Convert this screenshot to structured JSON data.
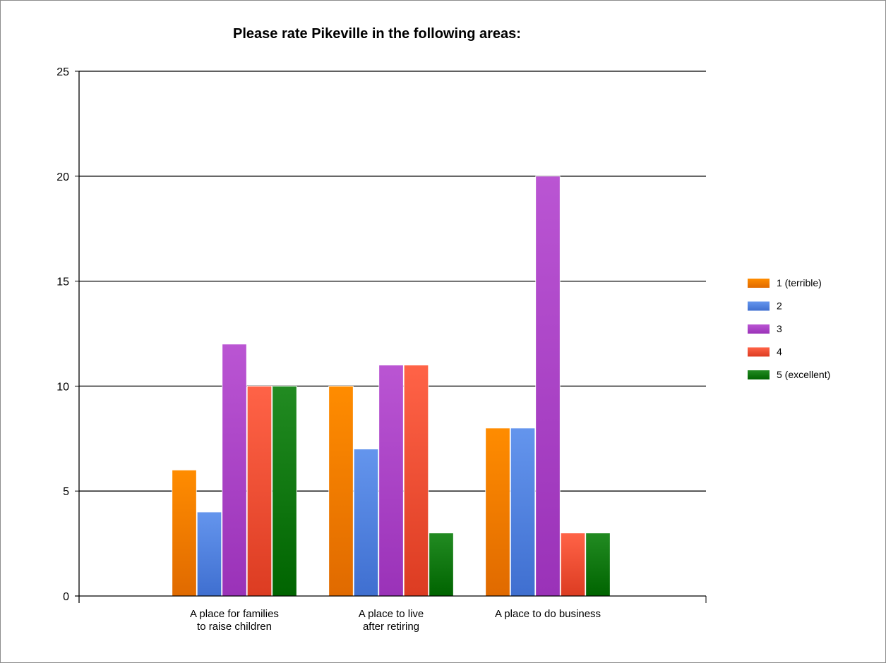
{
  "chart_data": {
    "type": "bar",
    "title": "Please rate Pikeville in the following areas:",
    "xlabel": "",
    "ylabel": "",
    "ylim": [
      0,
      25
    ],
    "yticks": [
      0,
      5,
      10,
      15,
      20,
      25
    ],
    "grid": true,
    "legend_position": "right",
    "categories": [
      [
        "A place for families",
        "to raise children"
      ],
      [
        "A place to live",
        "after retiring"
      ],
      [
        "A place to do business"
      ]
    ],
    "series": [
      {
        "name": "1 (terrible)",
        "values": [
          6,
          10,
          8
        ],
        "color_top": "#ff8c00",
        "color_bottom": "#e06a00"
      },
      {
        "name": "2",
        "values": [
          4,
          7,
          8
        ],
        "color_top": "#6495ed",
        "color_bottom": "#3f6fd0"
      },
      {
        "name": "3",
        "values": [
          12,
          11,
          20
        ],
        "color_top": "#ba55d3",
        "color_bottom": "#9a32b8"
      },
      {
        "name": "4",
        "values": [
          10,
          11,
          3
        ],
        "color_top": "#ff6347",
        "color_bottom": "#dc3c22"
      },
      {
        "name": "5 (excellent)",
        "values": [
          10,
          3,
          3
        ],
        "color_top": "#228b22",
        "color_bottom": "#006400"
      }
    ]
  }
}
